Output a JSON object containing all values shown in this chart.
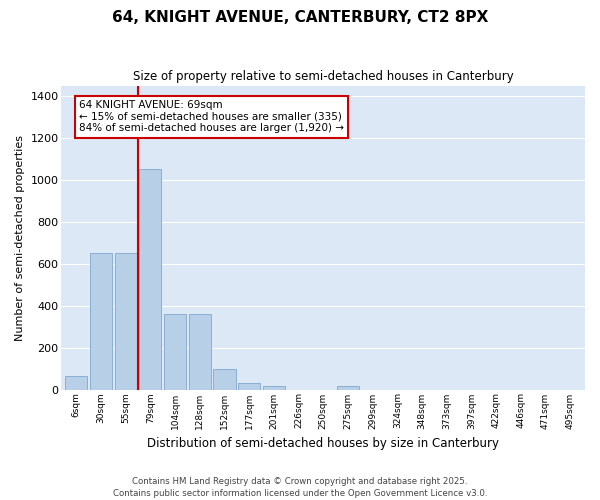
{
  "title1": "64, KNIGHT AVENUE, CANTERBURY, CT2 8PX",
  "title2": "Size of property relative to semi-detached houses in Canterbury",
  "xlabel": "Distribution of semi-detached houses by size in Canterbury",
  "ylabel": "Number of semi-detached properties",
  "categories": [
    "6sqm",
    "30sqm",
    "55sqm",
    "79sqm",
    "104sqm",
    "128sqm",
    "152sqm",
    "177sqm",
    "201sqm",
    "226sqm",
    "250sqm",
    "275sqm",
    "299sqm",
    "324sqm",
    "348sqm",
    "373sqm",
    "397sqm",
    "422sqm",
    "446sqm",
    "471sqm",
    "495sqm"
  ],
  "values": [
    65,
    650,
    650,
    1050,
    360,
    360,
    100,
    30,
    15,
    0,
    0,
    15,
    0,
    0,
    0,
    0,
    0,
    0,
    0,
    0,
    0
  ],
  "bar_color": "#b8cfe8",
  "bar_edge_color": "#8aafd4",
  "bg_color": "#dce8f5",
  "vline_color": "#cc0000",
  "vline_x": 2.5,
  "annotation_text": "64 KNIGHT AVENUE: 69sqm\n← 15% of semi-detached houses are smaller (335)\n84% of semi-detached houses are larger (1,920) →",
  "ylim": [
    0,
    1450
  ],
  "yticks": [
    0,
    200,
    400,
    600,
    800,
    1000,
    1200,
    1400
  ],
  "footnote": "Contains HM Land Registry data © Crown copyright and database right 2025.\nContains public sector information licensed under the Open Government Licence v3.0."
}
